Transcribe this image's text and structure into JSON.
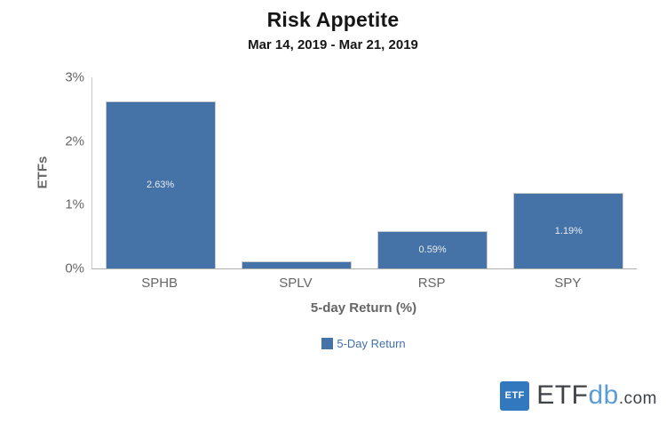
{
  "chart_data": {
    "type": "bar",
    "title": "Risk Appetite",
    "subtitle": "Mar 14, 2019 - Mar 21, 2019",
    "xlabel": "5-day Return (%)",
    "ylabel": "ETFs",
    "categories": [
      "SPHB",
      "SPLV",
      "RSP",
      "SPY"
    ],
    "series": [
      {
        "name": "5-Day Return",
        "values": [
          2.63,
          0.11,
          0.59,
          1.19
        ],
        "bar_labels": [
          "2.63%",
          "",
          "0.59%",
          "1.19%"
        ]
      }
    ],
    "ylim": [
      0,
      3
    ],
    "yticks": [
      {
        "value": 3,
        "label": "3%"
      },
      {
        "value": 2,
        "label": "2%"
      },
      {
        "value": 1,
        "label": "1%"
      },
      {
        "value": 0,
        "label": "0%"
      }
    ],
    "grid": false,
    "legend": {
      "position": "bottom-center",
      "entries": [
        {
          "label": "5-Day Return",
          "color": "#4572a7"
        }
      ]
    },
    "colors": {
      "bar_fill": "#4572a7",
      "bar_border": "#c6cacd",
      "value_label": "#e9ebee",
      "axis_text": "#666666",
      "title_text": "#161616"
    }
  },
  "branding": {
    "badge_text": "ETF",
    "badge_color": "#3178be",
    "name_etf": "ETF",
    "name_db": "db",
    "name_tld": ".com",
    "etf_color": "#3e4247",
    "db_color": "#5b9cd6",
    "tld_color": "#3e4247"
  }
}
